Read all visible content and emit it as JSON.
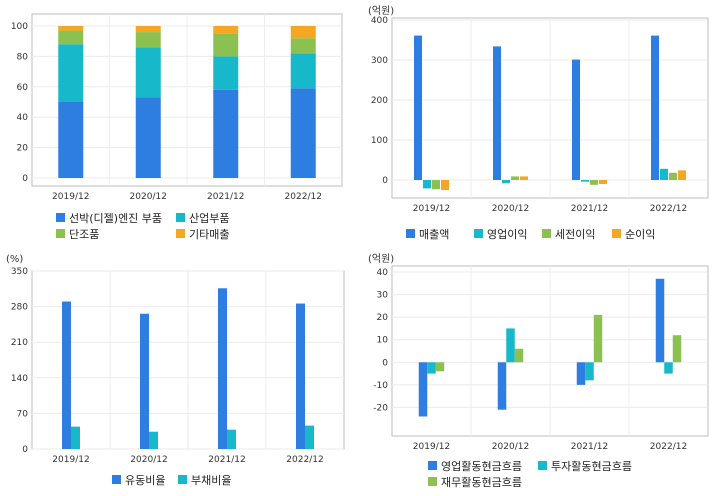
{
  "chart_data": [
    {
      "type": "bar",
      "stacked": true,
      "title": "",
      "unit": "",
      "categories": [
        "2019/12",
        "2020/12",
        "2021/12",
        "2022/12"
      ],
      "ylim": [
        0,
        100
      ],
      "yticks": [
        0,
        20,
        40,
        60,
        80,
        100
      ],
      "grid": true,
      "legend": "bottom",
      "series": [
        {
          "name": "선박(디젤)엔진 부품",
          "color": "#2e7de1",
          "values": [
            50,
            53,
            58,
            59
          ]
        },
        {
          "name": "산업부품",
          "color": "#17b8c9",
          "values": [
            38,
            33,
            22,
            23
          ]
        },
        {
          "name": "단조품",
          "color": "#8cc152",
          "values": [
            9,
            10,
            15,
            10
          ]
        },
        {
          "name": "기타매출",
          "color": "#f5a623",
          "values": [
            3,
            4,
            5,
            8
          ]
        }
      ]
    },
    {
      "type": "bar",
      "title": "",
      "unit": "(억원)",
      "categories": [
        "2019/12",
        "2020/12",
        "2021/12",
        "2022/12"
      ],
      "ylim": [
        -40,
        400
      ],
      "yticks": [
        0,
        100,
        200,
        300,
        400
      ],
      "grid": true,
      "legend": "bottom",
      "series": [
        {
          "name": "매출액",
          "color": "#2e7de1",
          "values": [
            361,
            334,
            301,
            361
          ]
        },
        {
          "name": "영업이익",
          "color": "#17b8c9",
          "values": [
            -21,
            -8,
            -4,
            28
          ]
        },
        {
          "name": "세전이익",
          "color": "#8cc152",
          "values": [
            -23,
            9,
            -12,
            18
          ]
        },
        {
          "name": "순이익",
          "color": "#f5a623",
          "values": [
            -25,
            9,
            -10,
            24
          ]
        }
      ]
    },
    {
      "type": "bar",
      "title": "",
      "unit": "(%)",
      "categories": [
        "2019/12",
        "2020/12",
        "2021/12",
        "2022/12"
      ],
      "ylim": [
        0,
        350
      ],
      "yticks": [
        0,
        70,
        140,
        210,
        280,
        350
      ],
      "grid": true,
      "legend": "bottom",
      "series": [
        {
          "name": "유동비율",
          "color": "#2e7de1",
          "values": [
            290,
            266,
            316,
            286
          ]
        },
        {
          "name": "부채비율",
          "color": "#17b8c9",
          "values": [
            44,
            34,
            38,
            46
          ]
        }
      ]
    },
    {
      "type": "bar",
      "title": "",
      "unit": "(억원)",
      "categories": [
        "2019/12",
        "2020/12",
        "2021/12",
        "2022/12"
      ],
      "ylim": [
        -30,
        40
      ],
      "yticks": [
        -20,
        -10,
        0,
        10,
        20,
        30,
        40
      ],
      "grid": true,
      "legend": "bottom",
      "series": [
        {
          "name": "영업활동현금흐름",
          "color": "#2e7de1",
          "values": [
            -24,
            -21,
            -10,
            37
          ]
        },
        {
          "name": "투자활동현금흐름",
          "color": "#17b8c9",
          "values": [
            -5,
            15,
            -8,
            -5
          ]
        },
        {
          "name": "재무활동현금흐름",
          "color": "#8cc152",
          "values": [
            -4,
            6,
            21,
            12
          ]
        }
      ]
    }
  ]
}
